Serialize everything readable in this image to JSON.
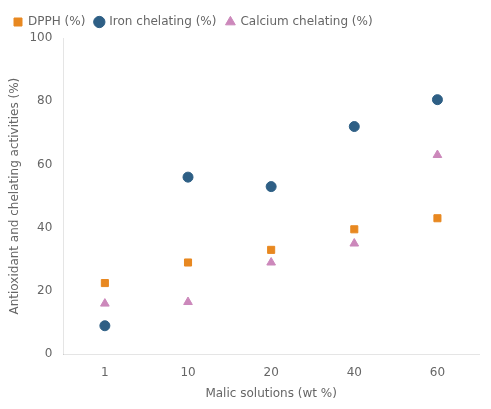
{
  "chart_data": {
    "type": "scatter",
    "categories": [
      "1",
      "10",
      "20",
      "40",
      "60"
    ],
    "series": [
      {
        "name": "DPPH (%)",
        "color": "#E88820",
        "marker": "square",
        "values": [
          22.5,
          29,
          33,
          39.5,
          43
        ]
      },
      {
        "name": "Iron chelating (%)",
        "color": "#2E5F85",
        "marker": "circle",
        "values": [
          9,
          56,
          53,
          72,
          80.5
        ]
      },
      {
        "name": "Calcium chelating (%)",
        "color": "#CC88BB",
        "marker": "triangle",
        "values": [
          16,
          16.5,
          29,
          35,
          63
        ]
      }
    ],
    "xlabel": "Malic solutions (wt %)",
    "ylabel": "Antioxidant and chelating activities (%)",
    "ylim": [
      0,
      100
    ],
    "yticks": [
      0,
      20,
      40,
      60,
      80,
      100
    ],
    "grid": false,
    "legend": "upper left"
  }
}
